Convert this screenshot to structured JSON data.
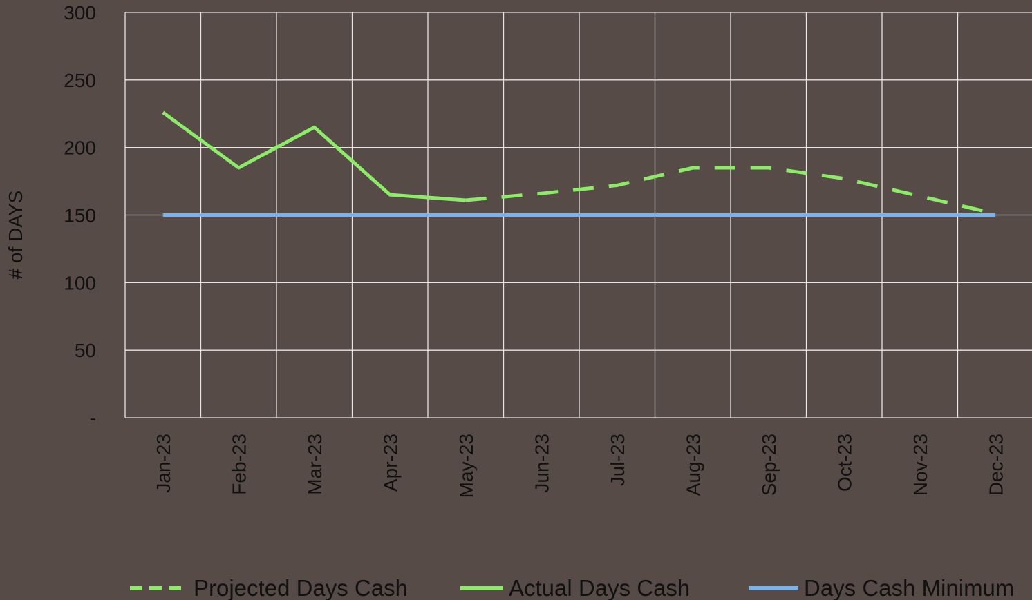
{
  "chart_data": {
    "type": "line",
    "y_label": "# of DAYS",
    "categories": [
      "Jan-23",
      "Feb-23",
      "Mar-23",
      "Apr-23",
      "May-23",
      "Jun-23",
      "Jul-23",
      "Aug-23",
      "Sep-23",
      "Oct-23",
      "Nov-23",
      "Dec-23"
    ],
    "series": [
      {
        "name": "Projected Days Cash",
        "color": "#8cec68",
        "dash": true,
        "values": [
          null,
          null,
          null,
          null,
          161,
          166,
          172,
          185,
          185,
          177,
          164,
          151
        ]
      },
      {
        "name": "Actual Days Cash",
        "color": "#8cec68",
        "dash": false,
        "values": [
          226,
          185,
          215,
          165,
          161,
          null,
          null,
          null,
          null,
          null,
          null,
          null
        ]
      },
      {
        "name": "Days Cash Minimum",
        "color": "#76b4ef",
        "dash": false,
        "values": [
          150,
          150,
          150,
          150,
          150,
          150,
          150,
          150,
          150,
          150,
          150,
          150
        ]
      }
    ],
    "ylim": [
      0,
      300
    ],
    "yticks": [
      {
        "value": 0,
        "label": "-"
      },
      50,
      100,
      150,
      200,
      250,
      300
    ],
    "grid": true
  }
}
